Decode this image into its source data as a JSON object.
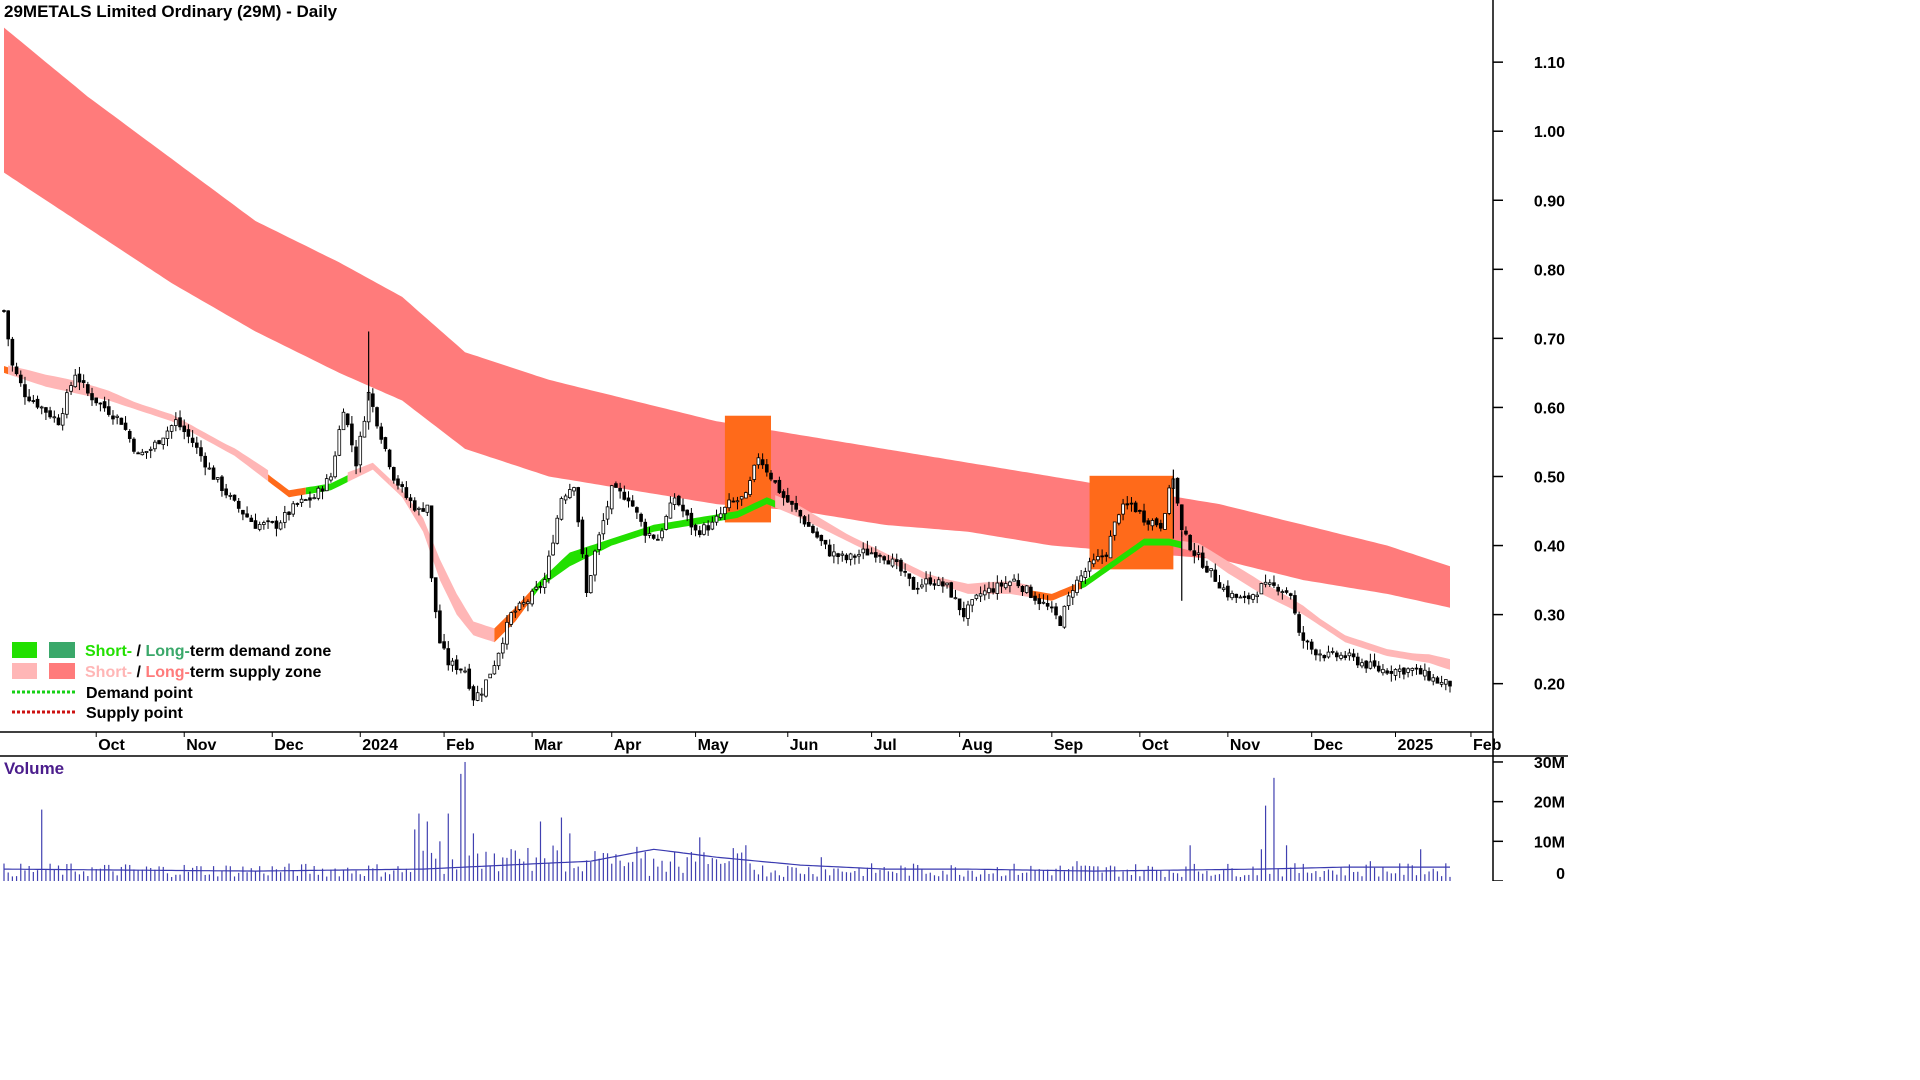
{
  "title": "29METALS Limited Ordinary (29M) - Daily",
  "volume_label": "Volume",
  "legend": {
    "demand_zone_short": "Short-",
    "demand_zone_sep": " / ",
    "demand_zone_long": "Long-",
    "demand_zone_rest": "term demand zone",
    "supply_zone_short": "Short-",
    "supply_zone_sep": " / ",
    "supply_zone_long": "Long-",
    "supply_zone_rest": "term supply zone",
    "demand_point": "Demand point",
    "supply_point": "Supply point"
  },
  "colors": {
    "short_demand": "#22e000",
    "long_demand": "#3aa86a",
    "short_supply": "#ffb6b6",
    "long_supply": "#ff7b7b",
    "overlap": "#ff6a1a",
    "demand_point": "#16d016",
    "supply_point": "#cc1111",
    "volume_bar": "#4040b0",
    "volume_avg": "#3a3ab0",
    "volume_title": "#4b1d8c"
  },
  "chart_data": {
    "type": "candlestick",
    "y_axis": {
      "ticks": [
        0.2,
        0.3,
        0.4,
        0.5,
        0.6,
        0.7,
        0.8,
        0.9,
        1.0,
        1.1
      ],
      "tick_labels": [
        "0.20",
        "0.30",
        "0.40",
        "0.50",
        "0.60",
        "0.70",
        "0.80",
        "0.90",
        "1.00",
        "1.10"
      ],
      "ylim": [
        0.13,
        1.19
      ]
    },
    "x_axis": {
      "labels": [
        "Oct",
        "Nov",
        "Dec",
        "2024",
        "Feb",
        "Mar",
        "Apr",
        "May",
        "Jun",
        "Jul",
        "Aug",
        "Sep",
        "Oct",
        "Nov",
        "Dec",
        "2025",
        "Feb"
      ],
      "label_positions": [
        22,
        43,
        64,
        85,
        105,
        126,
        145,
        165,
        187,
        207,
        228,
        250,
        271,
        292,
        312,
        332,
        350
      ]
    },
    "volume_axis": {
      "ticks": [
        0,
        10,
        20,
        30
      ],
      "tick_labels": [
        "0",
        "10M",
        "20M",
        "30M"
      ],
      "ylim": [
        0,
        31
      ]
    },
    "close_keypoints": [
      [
        0,
        0.74
      ],
      [
        2,
        0.66
      ],
      [
        5,
        0.62
      ],
      [
        9,
        0.6
      ],
      [
        13,
        0.58
      ],
      [
        17,
        0.65
      ],
      [
        20,
        0.62
      ],
      [
        24,
        0.6
      ],
      [
        28,
        0.58
      ],
      [
        32,
        0.53
      ],
      [
        35,
        0.54
      ],
      [
        41,
        0.58
      ],
      [
        45,
        0.55
      ],
      [
        50,
        0.5
      ],
      [
        55,
        0.46
      ],
      [
        60,
        0.43
      ],
      [
        65,
        0.43
      ],
      [
        70,
        0.46
      ],
      [
        74,
        0.47
      ],
      [
        78,
        0.5
      ],
      [
        81,
        0.6
      ],
      [
        84,
        0.52
      ],
      [
        87,
        0.62
      ],
      [
        90,
        0.56
      ],
      [
        93,
        0.5
      ],
      [
        96,
        0.47
      ],
      [
        99,
        0.45
      ],
      [
        101,
        0.46
      ],
      [
        102,
        0.35
      ],
      [
        104,
        0.26
      ],
      [
        106,
        0.23
      ],
      [
        110,
        0.22
      ],
      [
        112,
        0.18
      ],
      [
        114,
        0.19
      ],
      [
        117,
        0.23
      ],
      [
        121,
        0.3
      ],
      [
        125,
        0.32
      ],
      [
        129,
        0.35
      ],
      [
        133,
        0.47
      ],
      [
        136,
        0.49
      ],
      [
        139,
        0.33
      ],
      [
        141,
        0.39
      ],
      [
        145,
        0.48
      ],
      [
        149,
        0.47
      ],
      [
        153,
        0.42
      ],
      [
        156,
        0.41
      ],
      [
        160,
        0.47
      ],
      [
        165,
        0.42
      ],
      [
        169,
        0.43
      ],
      [
        173,
        0.46
      ],
      [
        177,
        0.47
      ],
      [
        180,
        0.53
      ],
      [
        183,
        0.5
      ],
      [
        186,
        0.47
      ],
      [
        189,
        0.45
      ],
      [
        193,
        0.42
      ],
      [
        197,
        0.39
      ],
      [
        201,
        0.38
      ],
      [
        205,
        0.39
      ],
      [
        209,
        0.39
      ],
      [
        213,
        0.37
      ],
      [
        217,
        0.34
      ],
      [
        221,
        0.35
      ],
      [
        225,
        0.34
      ],
      [
        229,
        0.3
      ],
      [
        233,
        0.33
      ],
      [
        237,
        0.34
      ],
      [
        241,
        0.35
      ],
      [
        245,
        0.33
      ],
      [
        249,
        0.31
      ],
      [
        252,
        0.29
      ],
      [
        255,
        0.34
      ],
      [
        259,
        0.37
      ],
      [
        263,
        0.39
      ],
      [
        266,
        0.45
      ],
      [
        269,
        0.46
      ],
      [
        272,
        0.44
      ],
      [
        276,
        0.43
      ],
      [
        279,
        0.5
      ],
      [
        281,
        0.42
      ],
      [
        284,
        0.39
      ],
      [
        288,
        0.36
      ],
      [
        292,
        0.33
      ],
      [
        296,
        0.32
      ],
      [
        300,
        0.34
      ],
      [
        304,
        0.34
      ],
      [
        307,
        0.33
      ],
      [
        309,
        0.27
      ],
      [
        312,
        0.25
      ],
      [
        316,
        0.24
      ],
      [
        320,
        0.24
      ],
      [
        324,
        0.23
      ],
      [
        328,
        0.22
      ],
      [
        332,
        0.22
      ],
      [
        336,
        0.22
      ],
      [
        340,
        0.21
      ],
      [
        343,
        0.2
      ],
      [
        345,
        0.2
      ]
    ],
    "long_term_zone_top": [
      [
        0,
        1.15
      ],
      [
        20,
        1.05
      ],
      [
        40,
        0.96
      ],
      [
        60,
        0.87
      ],
      [
        80,
        0.81
      ],
      [
        95,
        0.76
      ],
      [
        110,
        0.68
      ],
      [
        130,
        0.64
      ],
      [
        150,
        0.61
      ],
      [
        170,
        0.58
      ],
      [
        190,
        0.56
      ],
      [
        210,
        0.54
      ],
      [
        230,
        0.52
      ],
      [
        250,
        0.5
      ],
      [
        270,
        0.48
      ],
      [
        290,
        0.46
      ],
      [
        310,
        0.43
      ],
      [
        330,
        0.4
      ],
      [
        345,
        0.37
      ]
    ],
    "long_term_zone_bottom": [
      [
        0,
        0.94
      ],
      [
        20,
        0.86
      ],
      [
        40,
        0.78
      ],
      [
        60,
        0.71
      ],
      [
        80,
        0.65
      ],
      [
        95,
        0.61
      ],
      [
        110,
        0.54
      ],
      [
        130,
        0.5
      ],
      [
        150,
        0.48
      ],
      [
        170,
        0.46
      ],
      [
        190,
        0.45
      ],
      [
        210,
        0.43
      ],
      [
        230,
        0.42
      ],
      [
        250,
        0.4
      ],
      [
        270,
        0.39
      ],
      [
        290,
        0.38
      ],
      [
        310,
        0.35
      ],
      [
        330,
        0.33
      ],
      [
        345,
        0.31
      ]
    ],
    "short_term_upper": [
      [
        0,
        0.66
      ],
      [
        10,
        0.64
      ],
      [
        25,
        0.62
      ],
      [
        40,
        0.59
      ],
      [
        55,
        0.54
      ],
      [
        68,
        0.48
      ],
      [
        78,
        0.49
      ],
      [
        88,
        0.52
      ],
      [
        95,
        0.48
      ],
      [
        100,
        0.44
      ],
      [
        104,
        0.38
      ],
      [
        108,
        0.33
      ],
      [
        112,
        0.29
      ],
      [
        117,
        0.28
      ],
      [
        122,
        0.31
      ],
      [
        128,
        0.35
      ],
      [
        135,
        0.39
      ],
      [
        145,
        0.41
      ],
      [
        155,
        0.43
      ],
      [
        165,
        0.44
      ],
      [
        175,
        0.45
      ],
      [
        182,
        0.47
      ],
      [
        190,
        0.45
      ],
      [
        200,
        0.42
      ],
      [
        210,
        0.39
      ],
      [
        220,
        0.36
      ],
      [
        230,
        0.34
      ],
      [
        240,
        0.34
      ],
      [
        250,
        0.33
      ],
      [
        258,
        0.35
      ],
      [
        265,
        0.38
      ],
      [
        272,
        0.41
      ],
      [
        278,
        0.41
      ],
      [
        285,
        0.4
      ],
      [
        292,
        0.37
      ],
      [
        300,
        0.34
      ],
      [
        310,
        0.31
      ],
      [
        320,
        0.27
      ],
      [
        330,
        0.25
      ],
      [
        340,
        0.24
      ],
      [
        345,
        0.23
      ]
    ],
    "short_term_lower": [
      [
        0,
        0.65
      ],
      [
        10,
        0.63
      ],
      [
        25,
        0.61
      ],
      [
        40,
        0.58
      ],
      [
        55,
        0.53
      ],
      [
        68,
        0.47
      ],
      [
        78,
        0.48
      ],
      [
        88,
        0.51
      ],
      [
        95,
        0.47
      ],
      [
        100,
        0.42
      ],
      [
        104,
        0.35
      ],
      [
        108,
        0.3
      ],
      [
        112,
        0.27
      ],
      [
        117,
        0.26
      ],
      [
        122,
        0.29
      ],
      [
        128,
        0.34
      ],
      [
        135,
        0.37
      ],
      [
        145,
        0.4
      ],
      [
        155,
        0.42
      ],
      [
        165,
        0.43
      ],
      [
        175,
        0.44
      ],
      [
        182,
        0.46
      ],
      [
        190,
        0.44
      ],
      [
        200,
        0.41
      ],
      [
        210,
        0.38
      ],
      [
        220,
        0.35
      ],
      [
        230,
        0.33
      ],
      [
        240,
        0.33
      ],
      [
        250,
        0.32
      ],
      [
        258,
        0.34
      ],
      [
        265,
        0.37
      ],
      [
        272,
        0.4
      ],
      [
        278,
        0.4
      ],
      [
        285,
        0.39
      ],
      [
        292,
        0.36
      ],
      [
        300,
        0.33
      ],
      [
        310,
        0.3
      ],
      [
        320,
        0.26
      ],
      [
        330,
        0.24
      ],
      [
        340,
        0.23
      ],
      [
        345,
        0.22
      ]
    ],
    "overlap_regions": [
      [
        172,
        183
      ],
      [
        259,
        279
      ]
    ],
    "volume_spikes": [
      [
        9,
        18
      ],
      [
        98,
        13
      ],
      [
        99,
        17
      ],
      [
        101,
        15
      ],
      [
        104,
        10
      ],
      [
        106,
        17
      ],
      [
        109,
        27
      ],
      [
        110,
        30
      ],
      [
        112,
        12
      ],
      [
        128,
        15
      ],
      [
        133,
        16
      ],
      [
        135,
        12
      ],
      [
        166,
        11
      ],
      [
        195,
        6
      ],
      [
        256,
        5
      ],
      [
        283,
        9
      ],
      [
        300,
        8
      ],
      [
        301,
        19
      ],
      [
        303,
        26
      ],
      [
        306,
        9
      ],
      [
        326,
        5
      ],
      [
        338,
        8
      ]
    ],
    "volume_avg": [
      [
        0,
        3
      ],
      [
        60,
        2.5
      ],
      [
        100,
        3
      ],
      [
        120,
        4
      ],
      [
        140,
        5
      ],
      [
        155,
        8
      ],
      [
        170,
        6
      ],
      [
        190,
        4
      ],
      [
        210,
        3
      ],
      [
        230,
        3
      ],
      [
        260,
        2.5
      ],
      [
        300,
        3
      ],
      [
        320,
        3.5
      ],
      [
        345,
        3.5
      ]
    ],
    "n_days": 346
  }
}
